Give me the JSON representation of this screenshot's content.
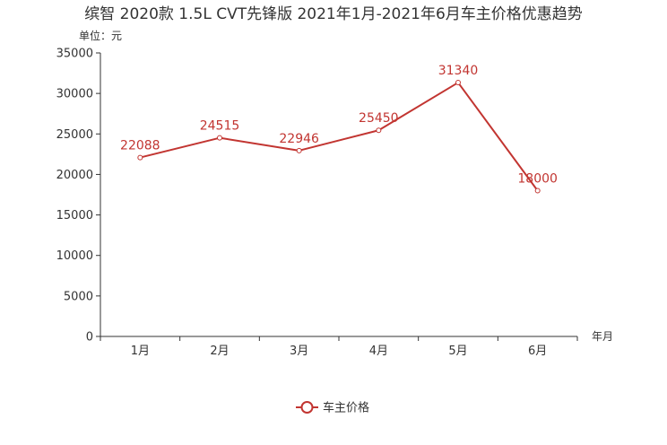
{
  "chart_data": {
    "type": "line",
    "title": "缤智 2020款 1.5L CVT先锋版 2021年1月-2021年6月车主价格优惠趋势",
    "ylabel": "单位：元",
    "xlabel": "年月",
    "categories": [
      "1月",
      "2月",
      "3月",
      "4月",
      "5月",
      "6月"
    ],
    "series": [
      {
        "name": "车主价格",
        "values": [
          22088,
          24515,
          22946,
          25450,
          31340,
          18000
        ]
      }
    ],
    "ylim": [
      0,
      35000
    ],
    "yticks": [
      0,
      5000,
      10000,
      15000,
      20000,
      25000,
      30000,
      35000
    ],
    "grid": false,
    "legend": "bottom-center",
    "colors": {
      "series": "#c23531",
      "axis": "#333333"
    }
  }
}
